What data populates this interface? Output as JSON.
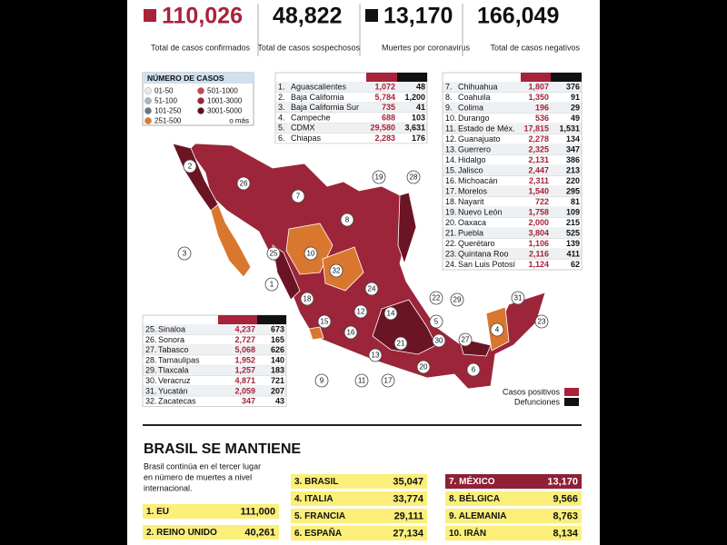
{
  "header": {
    "stats": [
      {
        "value": "110,026",
        "label": "Total de casos confirmados"
      },
      {
        "value": "48,822",
        "label": "Total de casos sospechosos"
      },
      {
        "value": "13,170",
        "label": "Muertes por coronavirus"
      },
      {
        "value": "166,049",
        "label": "Total de casos negativos"
      }
    ]
  },
  "legend": {
    "title": "NÚMERO DE CASOS",
    "items": [
      "01-50",
      "51-100",
      "101-250",
      "251-500",
      "501-1000",
      "1001-3000",
      "3001-5000"
    ],
    "note": "o más"
  },
  "tables": [
    {
      "rows": [
        {
          "rank": "1.",
          "name": "Aguascalientes",
          "positive": "1,072",
          "deaths": "48"
        },
        {
          "rank": "2.",
          "name": "Baja California",
          "positive": "5,784",
          "deaths": "1,200"
        },
        {
          "rank": "3.",
          "name": "Baja California Sur",
          "positive": "735",
          "deaths": "41"
        },
        {
          "rank": "4.",
          "name": "Campeche",
          "positive": "688",
          "deaths": "103"
        },
        {
          "rank": "5.",
          "name": "CDMX",
          "positive": "29,580",
          "deaths": "3,631"
        },
        {
          "rank": "6.",
          "name": "Chiapas",
          "positive": "2,283",
          "deaths": "176"
        }
      ]
    },
    {
      "rows": [
        {
          "rank": "7.",
          "name": "Chihuahua",
          "positive": "1,807",
          "deaths": "376"
        },
        {
          "rank": "8.",
          "name": "Coahuila",
          "positive": "1,350",
          "deaths": "91"
        },
        {
          "rank": "9.",
          "name": "Colima",
          "positive": "196",
          "deaths": "29"
        },
        {
          "rank": "10.",
          "name": "Durango",
          "positive": "536",
          "deaths": "49"
        },
        {
          "rank": "11.",
          "name": "Estado de Méx.",
          "positive": "17,815",
          "deaths": "1,531"
        },
        {
          "rank": "12.",
          "name": "Guanajuato",
          "positive": "2,278",
          "deaths": "134"
        },
        {
          "rank": "13.",
          "name": "Guerrero",
          "positive": "2,325",
          "deaths": "347"
        },
        {
          "rank": "14.",
          "name": "Hidalgo",
          "positive": "2,131",
          "deaths": "386"
        },
        {
          "rank": "15.",
          "name": "Jalisco",
          "positive": "2,447",
          "deaths": "213"
        },
        {
          "rank": "16.",
          "name": "Michoacán",
          "positive": "2,311",
          "deaths": "220"
        },
        {
          "rank": "17.",
          "name": "Morelos",
          "positive": "1,540",
          "deaths": "295"
        },
        {
          "rank": "18.",
          "name": "Nayarit",
          "positive": "722",
          "deaths": "81"
        },
        {
          "rank": "19.",
          "name": "Nuevo León",
          "positive": "1,758",
          "deaths": "109"
        },
        {
          "rank": "20.",
          "name": "Oaxaca",
          "positive": "2,000",
          "deaths": "215"
        },
        {
          "rank": "21.",
          "name": "Puebla",
          "positive": "3,804",
          "deaths": "525"
        },
        {
          "rank": "22.",
          "name": "Querétaro",
          "positive": "1,106",
          "deaths": "139"
        },
        {
          "rank": "23.",
          "name": "Quintana Roo",
          "positive": "2,116",
          "deaths": "411"
        },
        {
          "rank": "24.",
          "name": "San Luis Potosí",
          "positive": "1,124",
          "deaths": "62"
        }
      ]
    },
    {
      "rows": [
        {
          "rank": "25.",
          "name": "Sinaloa",
          "positive": "4,237",
          "deaths": "673"
        },
        {
          "rank": "26.",
          "name": "Sonora",
          "positive": "2,727",
          "deaths": "165"
        },
        {
          "rank": "27.",
          "name": "Tabasco",
          "positive": "5,068",
          "deaths": "626"
        },
        {
          "rank": "28.",
          "name": "Tamaulipas",
          "positive": "1,952",
          "deaths": "140"
        },
        {
          "rank": "29.",
          "name": "Tlaxcala",
          "positive": "1,257",
          "deaths": "183"
        },
        {
          "rank": "30.",
          "name": "Veracruz",
          "positive": "4,871",
          "deaths": "721"
        },
        {
          "rank": "31.",
          "name": "Yucatán",
          "positive": "2,059",
          "deaths": "207"
        },
        {
          "rank": "32.",
          "name": "Zacatecas",
          "positive": "347",
          "deaths": "43"
        }
      ]
    }
  ],
  "map": {
    "labels": [
      "2",
      "26",
      "7",
      "19",
      "28",
      "8",
      "3",
      "10",
      "25",
      "32",
      "1",
      "18",
      "24",
      "22",
      "29",
      "12",
      "14",
      "5",
      "15",
      "16",
      "4",
      "31",
      "23",
      "13",
      "21",
      "30",
      "27",
      "11",
      "17",
      "9",
      "20",
      "6"
    ],
    "legend": {
      "positive": "Casos positivos",
      "deaths": "Defunciones"
    }
  },
  "bottom": {
    "title": "BRASIL SE MANTIENE",
    "description": [
      "Brasil continúa en el tercer lugar",
      "en número de muertes a nivel",
      "internacional."
    ],
    "ranking": [
      {
        "label": "1. EU",
        "value": "111,000"
      },
      {
        "label": "2. REINO UNIDO",
        "value": "40,261"
      },
      {
        "label": "3. BRASIL",
        "value": "35,047"
      },
      {
        "label": "4. ITALIA",
        "value": "33,774"
      },
      {
        "label": "5. FRANCIA",
        "value": "29,111"
      },
      {
        "label": "6. ESPAÑA",
        "value": "27,134"
      },
      {
        "label": "7. MÉXICO",
        "value": "13,170",
        "highlight": true
      },
      {
        "label": "8. BÉLGICA",
        "value": "9,566"
      },
      {
        "label": "9. ALEMANIA",
        "value": "8,763"
      },
      {
        "label": "10. IRÁN",
        "value": "8,134"
      }
    ]
  }
}
